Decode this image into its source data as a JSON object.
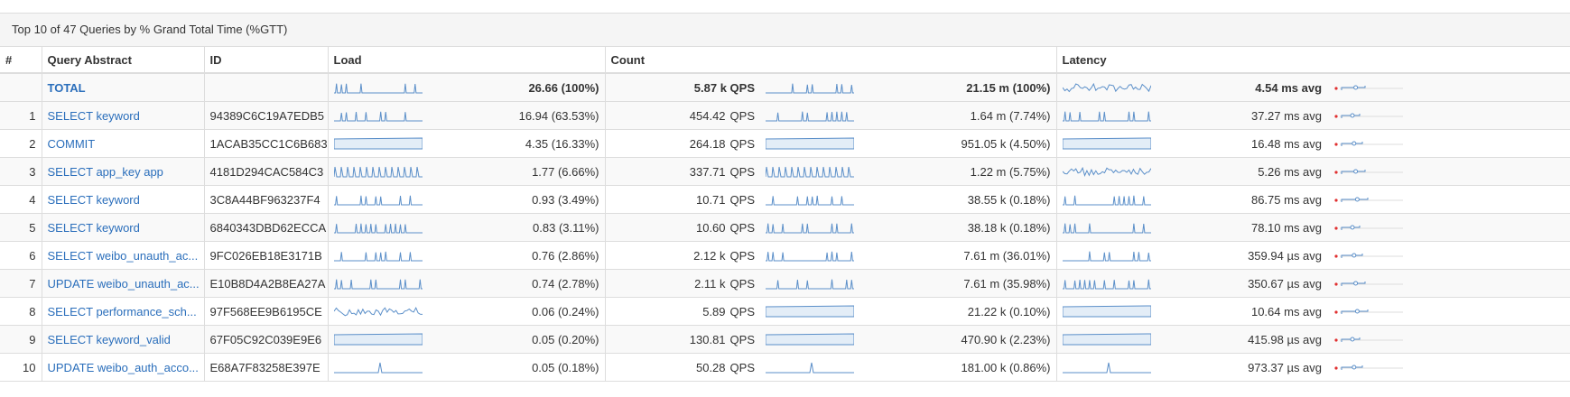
{
  "panel": {
    "title": "Top 10 of 47 Queries by % Grand Total Time (%GTT)"
  },
  "columns": {
    "rank": "#",
    "query": "Query Abstract",
    "id": "ID",
    "load": "Load",
    "count": "Count",
    "latency": "Latency"
  },
  "colors": {
    "link": "#2a6ebb",
    "spark": "#5b8fc9",
    "spark_fill": "#e3edf7",
    "marker": "#e03030"
  },
  "total": {
    "query": "TOTAL",
    "load": "26.66 (100%)",
    "qps": "5.87 k QPS",
    "count": "21.15 m (100%)",
    "latency": "4.54 ms avg"
  },
  "rows": [
    {
      "rank": "1",
      "query": "SELECT keyword",
      "id": "94389C6C19A7EDB5",
      "load": "16.94 (63.53%)",
      "qps": "454.42",
      "qps_unit": "QPS",
      "count": "1.64 m (7.74%)",
      "latency": "37.27 ms avg"
    },
    {
      "rank": "2",
      "query": "COMMIT",
      "id": "1ACAB35CC1C6B683",
      "load": "4.35 (16.33%)",
      "qps": "264.18",
      "qps_unit": "QPS",
      "count": "951.05 k (4.50%)",
      "latency": "16.48 ms avg"
    },
    {
      "rank": "3",
      "query": "SELECT app_key app",
      "id": "4181D294CAC584C3",
      "load": "1.77 (6.66%)",
      "qps": "337.71",
      "qps_unit": "QPS",
      "count": "1.22 m (5.75%)",
      "latency": "5.26 ms avg"
    },
    {
      "rank": "4",
      "query": "SELECT keyword",
      "id": "3C8A44BF963237F4",
      "load": "0.93 (3.49%)",
      "qps": "10.71",
      "qps_unit": "QPS",
      "count": "38.55 k (0.18%)",
      "latency": "86.75 ms avg"
    },
    {
      "rank": "5",
      "query": "SELECT keyword",
      "id": "6840343DBD62ECCA",
      "load": "0.83 (3.11%)",
      "qps": "10.60",
      "qps_unit": "QPS",
      "count": "38.18 k (0.18%)",
      "latency": "78.10 ms avg"
    },
    {
      "rank": "6",
      "query": "SELECT weibo_unauth_ac...",
      "id": "9FC026EB18E3171B",
      "load": "0.76 (2.86%)",
      "qps": "2.12 k",
      "qps_unit": "QPS",
      "count": "7.61 m (36.01%)",
      "latency": "359.94 µs avg"
    },
    {
      "rank": "7",
      "query": "UPDATE weibo_unauth_ac...",
      "id": "E10B8D4A2B8EA27A",
      "load": "0.74 (2.78%)",
      "qps": "2.11 k",
      "qps_unit": "QPS",
      "count": "7.61 m (35.98%)",
      "latency": "350.67 µs avg"
    },
    {
      "rank": "8",
      "query": "SELECT performance_sch...",
      "id": "97F568EE9B6195CE",
      "load": "0.06 (0.24%)",
      "qps": "5.89",
      "qps_unit": "QPS",
      "count": "21.22 k (0.10%)",
      "latency": "10.64 ms avg"
    },
    {
      "rank": "9",
      "query": "SELECT keyword_valid",
      "id": "67F05C92C039E9E6",
      "load": "0.05 (0.20%)",
      "qps": "130.81",
      "qps_unit": "QPS",
      "count": "470.90 k (2.23%)",
      "latency": "415.98 µs avg"
    },
    {
      "rank": "10",
      "query": "UPDATE weibo_auth_acco...",
      "id": "E68A7F83258E397E",
      "load": "0.05 (0.18%)",
      "qps": "50.28",
      "qps_unit": "QPS",
      "count": "181.00 k (0.86%)",
      "latency": "973.37 µs avg"
    }
  ]
}
